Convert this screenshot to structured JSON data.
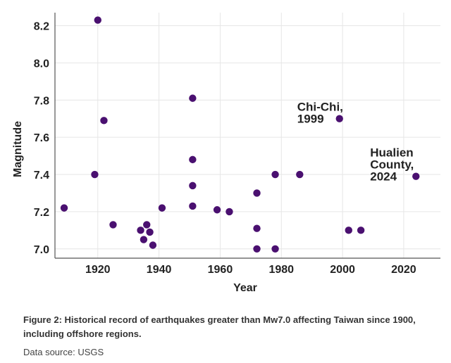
{
  "chart_data": {
    "type": "scatter",
    "title": "",
    "xlabel": "Year",
    "ylabel": "Magnitude",
    "xlim": [
      1906,
      2032
    ],
    "ylim": [
      6.95,
      8.27
    ],
    "xticks": [
      1920,
      1940,
      1960,
      1980,
      2000,
      2020
    ],
    "yticks": [
      7.0,
      7.2,
      7.4,
      7.6,
      7.8,
      8.0,
      8.2
    ],
    "ytick_labels": [
      "7.0",
      "7.2",
      "7.4",
      "7.6",
      "7.8",
      "8.0",
      "8.2"
    ],
    "grid": true,
    "point_color": "#4a1070",
    "points": [
      {
        "x": 1909,
        "y": 7.22
      },
      {
        "x": 1920,
        "y": 8.23
      },
      {
        "x": 1919,
        "y": 7.4
      },
      {
        "x": 1922,
        "y": 7.69
      },
      {
        "x": 1925,
        "y": 7.13
      },
      {
        "x": 1934,
        "y": 7.1
      },
      {
        "x": 1935,
        "y": 7.05
      },
      {
        "x": 1936,
        "y": 7.13
      },
      {
        "x": 1937,
        "y": 7.09
      },
      {
        "x": 1938,
        "y": 7.02
      },
      {
        "x": 1941,
        "y": 7.22
      },
      {
        "x": 1951,
        "y": 7.81
      },
      {
        "x": 1951,
        "y": 7.48
      },
      {
        "x": 1951,
        "y": 7.34
      },
      {
        "x": 1951,
        "y": 7.23
      },
      {
        "x": 1959,
        "y": 7.21
      },
      {
        "x": 1963,
        "y": 7.2
      },
      {
        "x": 1972,
        "y": 7.3
      },
      {
        "x": 1972,
        "y": 7.11
      },
      {
        "x": 1972,
        "y": 7.0
      },
      {
        "x": 1978,
        "y": 7.4
      },
      {
        "x": 1978,
        "y": 7.0
      },
      {
        "x": 1986,
        "y": 7.4
      },
      {
        "x": 1999,
        "y": 7.7
      },
      {
        "x": 2002,
        "y": 7.1
      },
      {
        "x": 2006,
        "y": 7.1
      },
      {
        "x": 2024,
        "y": 7.39
      }
    ],
    "annotations": [
      {
        "lines": [
          "Chi-Chi,",
          "1999"
        ],
        "year": 1999
      },
      {
        "lines": [
          "Hualien",
          "County,",
          "2024"
        ],
        "year": 2024
      }
    ]
  },
  "caption": "Figure 2: Historical record of earthquakes greater than Mw7.0 affecting Taiwan since 1900, including offshore regions.",
  "source": "Data source: USGS"
}
